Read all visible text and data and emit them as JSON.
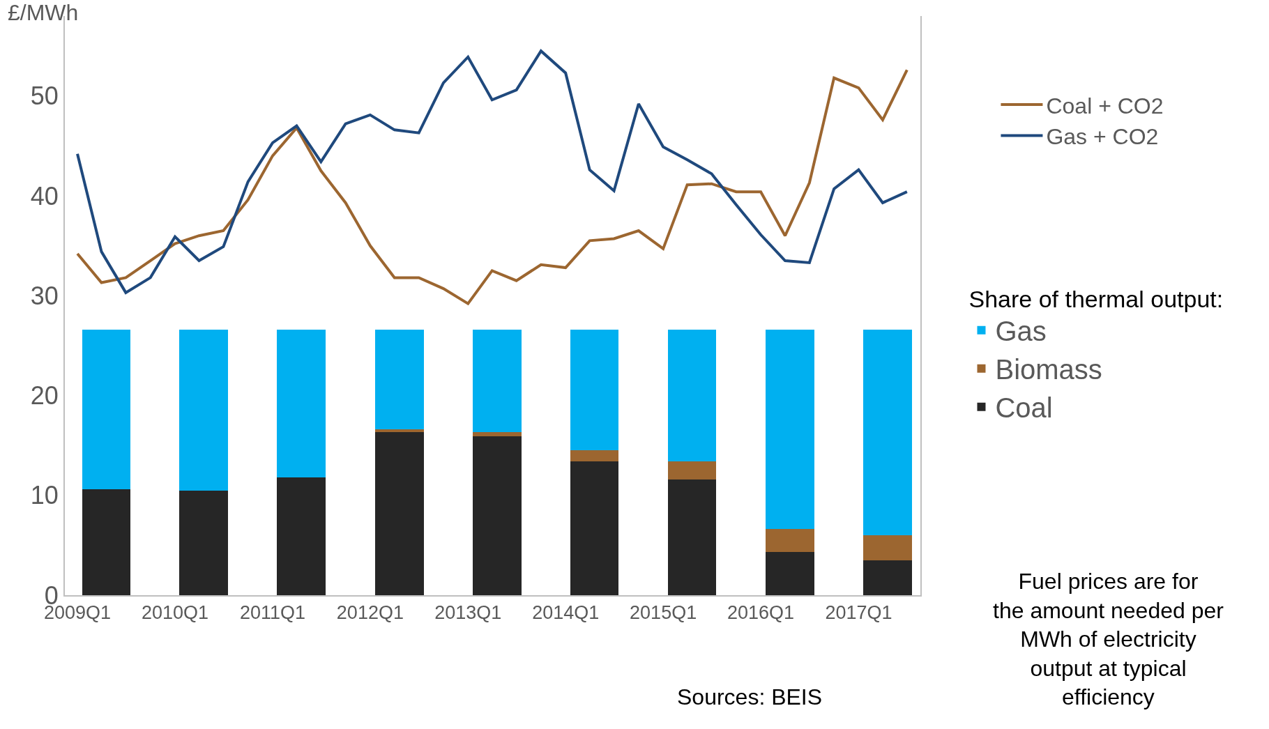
{
  "chart_data": {
    "type": "line",
    "ylabel": "£/MWh",
    "legend_title": "Share of thermal output:",
    "x": [
      "2009-01",
      "2009-04",
      "2009-07",
      "2009-10",
      "2010-01",
      "2010-04",
      "2010-07",
      "2010-10",
      "2011-01",
      "2011-04",
      "2011-07",
      "2011-10",
      "2012-01",
      "2012-04",
      "2012-07",
      "2012-10",
      "2013-01",
      "2013-04",
      "2013-07",
      "2013-10",
      "2014-01",
      "2014-04",
      "2014-07",
      "2014-10",
      "2015-01",
      "2015-04",
      "2015-07",
      "2015-10",
      "2016-01",
      "2016-04",
      "2016-07",
      "2016-10",
      "2017-01",
      "2017-04",
      "2017-07"
    ],
    "xlim": [
      "2008-11-15",
      "2017-08-20"
    ],
    "xticks": [
      {
        "value": "2009-01",
        "label": "2009Q1"
      },
      {
        "value": "2010-01",
        "label": "2010Q1"
      },
      {
        "value": "2011-01",
        "label": "2011Q1"
      },
      {
        "value": "2012-01",
        "label": "2012Q1"
      },
      {
        "value": "2013-01",
        "label": "2013Q1"
      },
      {
        "value": "2014-01",
        "label": "2014Q1"
      },
      {
        "value": "2015-01",
        "label": "2015Q1"
      },
      {
        "value": "2016-01",
        "label": "2016Q1"
      },
      {
        "value": "2017-01",
        "label": "2017Q1"
      }
    ],
    "ylim": [
      0,
      58
    ],
    "yticks": [
      0,
      10,
      20,
      30,
      40,
      50
    ],
    "grid": false,
    "legend": "right",
    "marker": "none",
    "line_style": "solid",
    "stacked": true,
    "series": [
      {
        "type": "bar",
        "name": "Coal",
        "color": "#262626",
        "x": [
          "2009-04-19",
          "2010-04-19",
          "2011-04-19",
          "2012-04-19",
          "2013-04-19",
          "2014-04-19",
          "2015-04-19",
          "2016-04-19",
          "2017-04-19"
        ],
        "values": [
          10.6,
          10.5,
          11.8,
          16.3,
          15.9,
          13.4,
          11.6,
          4.3,
          3.5
        ]
      },
      {
        "type": "bar",
        "name": "Biomass",
        "color": "#9c6630",
        "x": [
          "2009-04-19",
          "2010-04-19",
          "2011-04-19",
          "2012-04-19",
          "2013-04-19",
          "2014-04-19",
          "2015-04-19",
          "2016-04-19",
          "2017-04-19"
        ],
        "values": [
          0,
          0,
          0,
          0.3,
          0.4,
          1.1,
          1.8,
          2.3,
          2.5
        ]
      },
      {
        "type": "bar",
        "name": "Gas",
        "color": "#00b0f0",
        "x": [
          "2009-04-19",
          "2010-04-19",
          "2011-04-19",
          "2012-04-19",
          "2013-04-19",
          "2014-04-19",
          "2015-04-19",
          "2016-04-19",
          "2017-04-19"
        ],
        "values": [
          16.0,
          16.1,
          14.8,
          10.0,
          10.3,
          12.1,
          13.2,
          20.0,
          20.6
        ]
      },
      {
        "name": "Coal + CO2",
        "color": "#9c6630",
        "values": [
          34.2,
          31.3,
          31.8,
          33.5,
          35.2,
          36.0,
          36.5,
          39.6,
          44.0,
          46.8,
          42.5,
          39.3,
          35.0,
          31.8,
          31.8,
          30.7,
          29.2,
          32.5,
          31.5,
          33.1,
          32.8,
          35.5,
          35.7,
          36.5,
          34.7,
          41.1,
          41.2,
          40.4,
          40.4,
          36.0,
          41.3,
          51.8,
          50.8,
          47.6,
          52.6
        ]
      },
      {
        "name": "Gas + CO2",
        "color": "#1f497d",
        "values": [
          44.2,
          34.4,
          30.3,
          31.8,
          35.9,
          33.5,
          34.9,
          41.4,
          45.3,
          47.0,
          43.4,
          47.2,
          48.1,
          46.6,
          46.3,
          51.3,
          53.9,
          49.6,
          50.6,
          54.5,
          52.3,
          42.6,
          40.5,
          49.2,
          44.9,
          43.6,
          42.2,
          39.1,
          36.1,
          33.5,
          33.3,
          40.7,
          42.6,
          39.3,
          40.4
        ]
      }
    ],
    "annotations": [
      "Fuel prices are for the amount needed per MWh of electricity output at typical efficiency",
      "Sources: BEIS"
    ]
  }
}
